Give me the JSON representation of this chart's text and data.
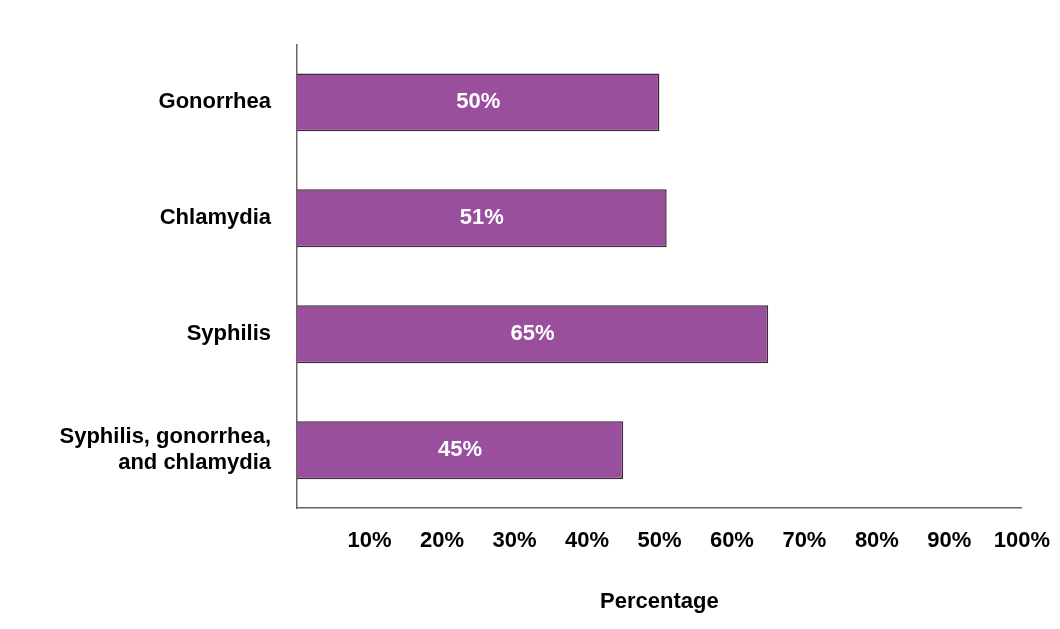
{
  "chart_data": {
    "type": "bar",
    "orientation": "horizontal",
    "xlabel": "Percentage",
    "categories": [
      "Gonorrhea",
      "Chlamydia",
      "Syphilis",
      "Syphilis, gonorrhea, and chlamydia"
    ],
    "values": [
      50,
      51,
      65,
      45
    ],
    "value_labels": [
      "50%",
      "51%",
      "65%",
      "45%"
    ],
    "color": "#994f9c",
    "xlim": [
      0,
      100
    ],
    "xticks": [
      {
        "value": 0,
        "label": null
      },
      {
        "value": 10,
        "label": "10%"
      },
      {
        "value": 20,
        "label": "20%"
      },
      {
        "value": 30,
        "label": "30%"
      },
      {
        "value": 40,
        "label": "40%"
      },
      {
        "value": 50,
        "label": "50%"
      },
      {
        "value": 60,
        "label": "60%"
      },
      {
        "value": 70,
        "label": "70%"
      },
      {
        "value": 80,
        "label": "80%"
      },
      {
        "value": 90,
        "label": "90%"
      },
      {
        "value": 100,
        "label": "100%"
      }
    ]
  }
}
